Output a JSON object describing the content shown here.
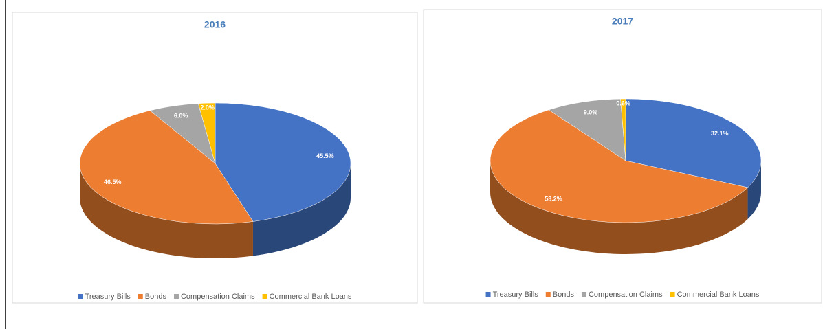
{
  "chart_data": [
    {
      "type": "pie3d",
      "title": "2016",
      "categories": [
        "Treasury Bills",
        "Bonds",
        "Compensation Claims",
        "Commercial Bank Loans"
      ],
      "values": [
        45.5,
        46.5,
        6.0,
        2.0
      ],
      "value_labels": [
        "45.5%",
        "46.5%",
        "6.0%",
        "2.0%"
      ],
      "colors": [
        "#4472c4",
        "#ed7d31",
        "#a5a5a5",
        "#ffc000"
      ],
      "legend": "bottom"
    },
    {
      "type": "pie3d",
      "title": "2017",
      "categories": [
        "Treasury Bills",
        "Bonds",
        "Compensation Claims",
        "Commercial Bank Loans"
      ],
      "values": [
        32.1,
        58.2,
        9.0,
        0.6
      ],
      "value_labels": [
        "32.1%",
        "58.2%",
        "9.0%",
        "0.6%"
      ],
      "colors": [
        "#4472c4",
        "#ed7d31",
        "#a5a5a5",
        "#ffc000"
      ],
      "legend": "bottom"
    }
  ]
}
